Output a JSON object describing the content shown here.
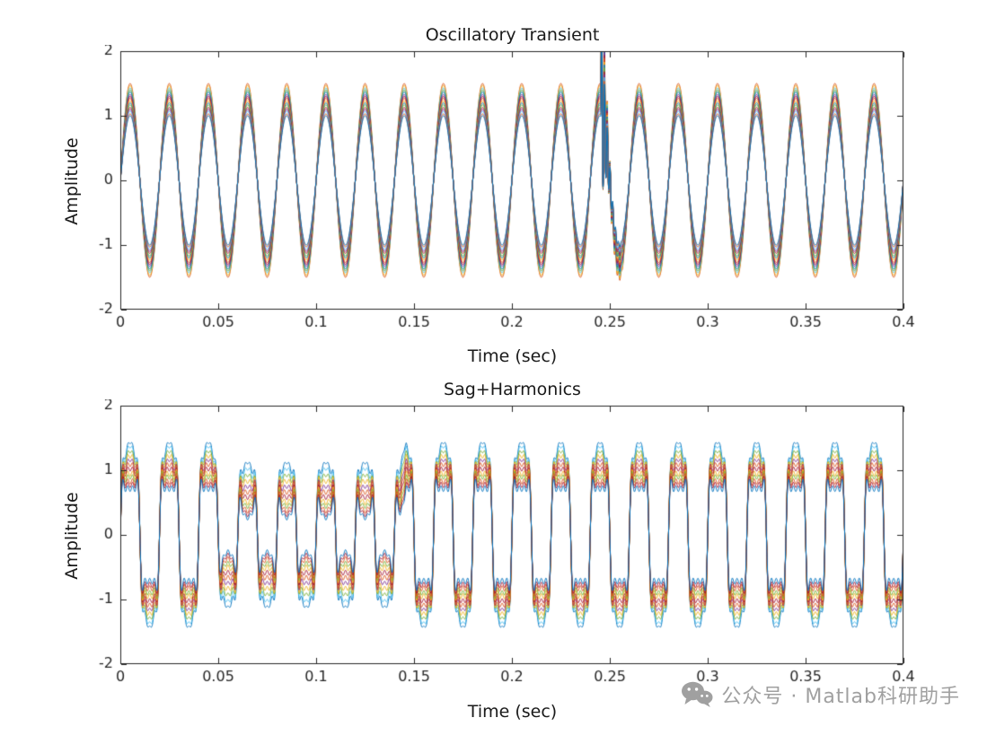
{
  "watermark": {
    "text": "公众号 · Matlab科研助手",
    "color": "#a0a0a0"
  },
  "chart_data": [
    {
      "type": "line",
      "title": "Oscillatory Transient",
      "xlabel": "Time (sec)",
      "ylabel": "Amplitude",
      "xlim": [
        0,
        0.4
      ],
      "ylim": [
        -2,
        2
      ],
      "xticks": [
        0,
        0.05,
        0.1,
        0.15,
        0.2,
        0.25,
        0.3,
        0.35,
        0.4
      ],
      "xtick_labels": [
        "0",
        "0.05",
        "0.1",
        "0.15",
        "0.2",
        "0.25",
        "0.3",
        "0.35",
        "0.4"
      ],
      "yticks": [
        -2,
        -1,
        0,
        1,
        2
      ],
      "ytick_labels": [
        "-2",
        "-1",
        "0",
        "1",
        "2"
      ],
      "grid": false,
      "legend": null,
      "axis_color": "#262626",
      "signal": {
        "kind": "oscillatory_transient",
        "fundamental_hz": 50,
        "transient": {
          "start_sec": 0.2455,
          "decay_sec": 0.0025,
          "freq_hz": 700,
          "relative_amplitude": 1.5
        },
        "series": [
          {
            "amplitude": 1.5,
            "color": "#D95319"
          },
          {
            "amplitude": 1.47,
            "color": "#EDB120"
          },
          {
            "amplitude": 1.43,
            "color": "#4DBEEE"
          },
          {
            "amplitude": 1.4,
            "color": "#77AC30"
          },
          {
            "amplitude": 1.37,
            "color": "#0072BD"
          },
          {
            "amplitude": 1.33,
            "color": "#7E2F8E"
          },
          {
            "amplitude": 1.3,
            "color": "#A2142F"
          },
          {
            "amitude_note": "",
            "amplitude": 1.27,
            "color": "#D95319"
          },
          {
            "amplitude": 1.23,
            "color": "#EDB120"
          },
          {
            "amplitude": 1.2,
            "color": "#0072BD"
          },
          {
            "amplitude": 1.17,
            "color": "#77AC30"
          },
          {
            "amplitude": 1.13,
            "color": "#A2142F"
          },
          {
            "amplitude": 1.1,
            "color": "#7E2F8E"
          },
          {
            "amplitude": 1.07,
            "color": "#4DBEEE"
          },
          {
            "amplitude": 1.03,
            "color": "#D95319"
          },
          {
            "amplitude": 1.0,
            "color": "#0072BD"
          }
        ]
      }
    },
    {
      "type": "line",
      "title": "Sag+Harmonics",
      "xlabel": "Time (sec)",
      "ylabel": "Amplitude",
      "xlim": [
        0,
        0.4
      ],
      "ylim": [
        -2,
        2
      ],
      "xticks": [
        0,
        0.05,
        0.1,
        0.15,
        0.2,
        0.25,
        0.3,
        0.35,
        0.4
      ],
      "xtick_labels": [
        "0",
        "0.05",
        "0.1",
        "0.15",
        "0.2",
        "0.25",
        "0.3",
        "0.35",
        "0.4"
      ],
      "yticks": [
        -2,
        -1,
        0,
        1,
        2
      ],
      "ytick_labels": [
        "-2",
        "-1",
        "0",
        "1",
        "2"
      ],
      "grid": false,
      "legend": null,
      "axis_color": "#262626",
      "signal": {
        "kind": "sag_harmonics",
        "fundamental_hz": 50,
        "sag": {
          "start_sec": 0.048,
          "end_sec": 0.146,
          "ramp_sec": 0.003
        },
        "series": [
          {
            "amplitude": 1.64,
            "h3": 0.2,
            "h5": 0.12,
            "h7": 0.06,
            "sag_factor": 0.8,
            "color": "#0072BD"
          },
          {
            "amplitude": 1.58,
            "h3": 0.21,
            "h5": 0.13,
            "h7": 0.07,
            "sag_factor": 0.77,
            "color": "#4DBEEE"
          },
          {
            "amplitude": 1.51,
            "h3": 0.22,
            "h5": 0.13,
            "h7": 0.07,
            "sag_factor": 0.74,
            "color": "#77AC30"
          },
          {
            "amplitude": 1.45,
            "h3": 0.24,
            "h5": 0.14,
            "h7": 0.08,
            "sag_factor": 0.71,
            "color": "#EDB120"
          },
          {
            "amplitude": 1.38,
            "h3": 0.25,
            "h5": 0.15,
            "h7": 0.08,
            "sag_factor": 0.68,
            "color": "#7E2F8E"
          },
          {
            "amplitude": 1.32,
            "h3": 0.27,
            "h5": 0.16,
            "h7": 0.09,
            "sag_factor": 0.65,
            "color": "#D95319"
          },
          {
            "amplitude": 1.25,
            "h3": 0.28,
            "h5": 0.16,
            "h7": 0.09,
            "sag_factor": 0.62,
            "color": "#A2142F"
          },
          {
            "amplitude": 1.18,
            "h3": 0.3,
            "h5": 0.17,
            "h7": 0.1,
            "sag_factor": 0.59,
            "color": "#EDB120"
          },
          {
            "amplitude": 1.12,
            "h3": 0.31,
            "h5": 0.18,
            "h7": 0.1,
            "sag_factor": 0.56,
            "color": "#77AC30"
          },
          {
            "amplitude": 1.05,
            "h3": 0.33,
            "h5": 0.19,
            "h7": 0.11,
            "sag_factor": 0.53,
            "color": "#D95319"
          },
          {
            "amplitude": 0.99,
            "h3": 0.34,
            "h5": 0.19,
            "h7": 0.11,
            "sag_factor": 0.5,
            "color": "#A2142F"
          },
          {
            "amplitude": 0.92,
            "h3": 0.35,
            "h5": 0.2,
            "h7": 0.12,
            "sag_factor": 0.47,
            "color": "#0072BD"
          }
        ]
      }
    }
  ]
}
